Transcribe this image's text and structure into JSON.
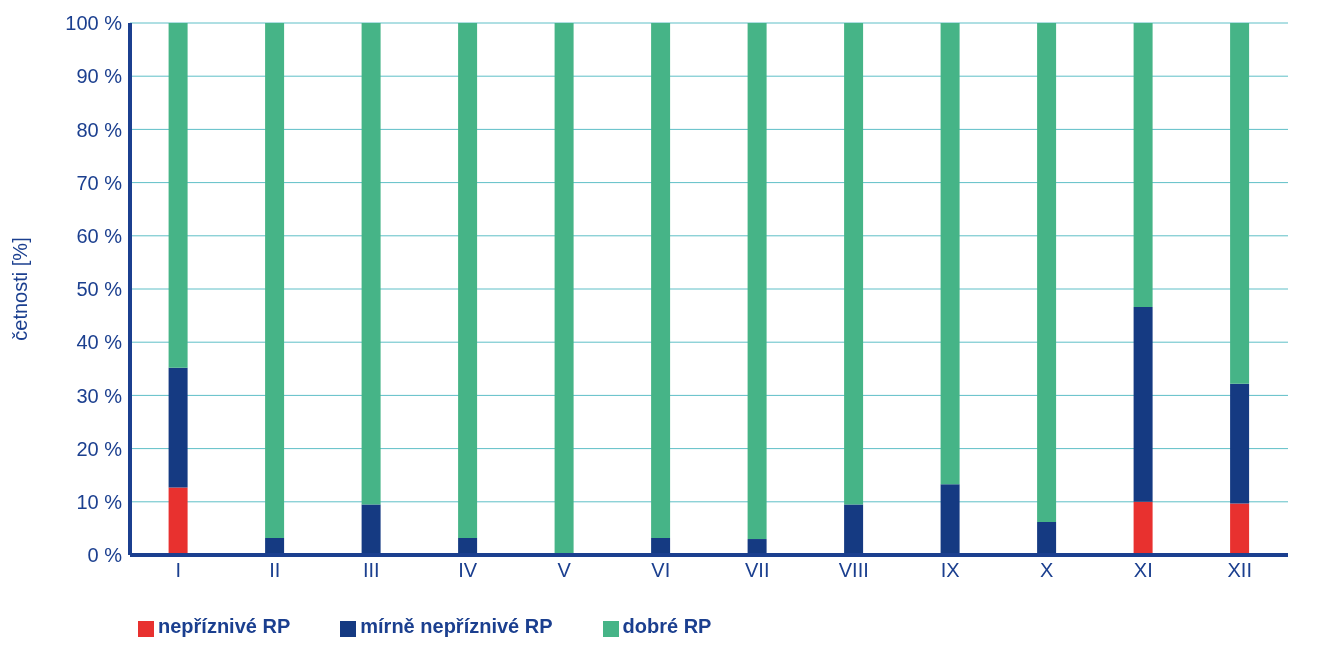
{
  "chart_data": {
    "type": "bar",
    "stacked": true,
    "ylabel": "četnosti [%]",
    "categories": [
      "I",
      "II",
      "III",
      "IV",
      "V",
      "VI",
      "VII",
      "VIII",
      "IX",
      "X",
      "XI",
      "XII"
    ],
    "series": [
      {
        "name": "nepříznivé RP",
        "color": "#e8312f",
        "values": [
          12.7,
          0,
          0,
          0,
          0,
          0,
          0,
          0,
          0,
          0,
          10.0,
          9.7
        ]
      },
      {
        "name": "mírně nepříznivé RP",
        "color": "#153a82",
        "values": [
          22.5,
          3.2,
          9.5,
          3.2,
          0,
          3.2,
          3.0,
          9.5,
          13.3,
          6.2,
          36.6,
          22.5
        ]
      },
      {
        "name": "dobré RP",
        "color": "#46b487",
        "values": [
          64.8,
          96.8,
          90.5,
          96.8,
          100,
          96.8,
          97.0,
          90.5,
          86.7,
          93.8,
          53.4,
          67.8
        ]
      }
    ],
    "ylim": [
      0,
      100
    ],
    "yticks": [
      {
        "value": 0,
        "label": "0 %"
      },
      {
        "value": 10,
        "label": "10 %"
      },
      {
        "value": 20,
        "label": "20 %"
      },
      {
        "value": 30,
        "label": "30 %"
      },
      {
        "value": 40,
        "label": "40 %"
      },
      {
        "value": 50,
        "label": "50 %"
      },
      {
        "value": 60,
        "label": "60 %"
      },
      {
        "value": 70,
        "label": "70 %"
      },
      {
        "value": 80,
        "label": "80 %"
      },
      {
        "value": 90,
        "label": "90 %"
      },
      {
        "value": 100,
        "label": "100 %"
      }
    ],
    "grid": "y",
    "legend": "bottom left"
  }
}
